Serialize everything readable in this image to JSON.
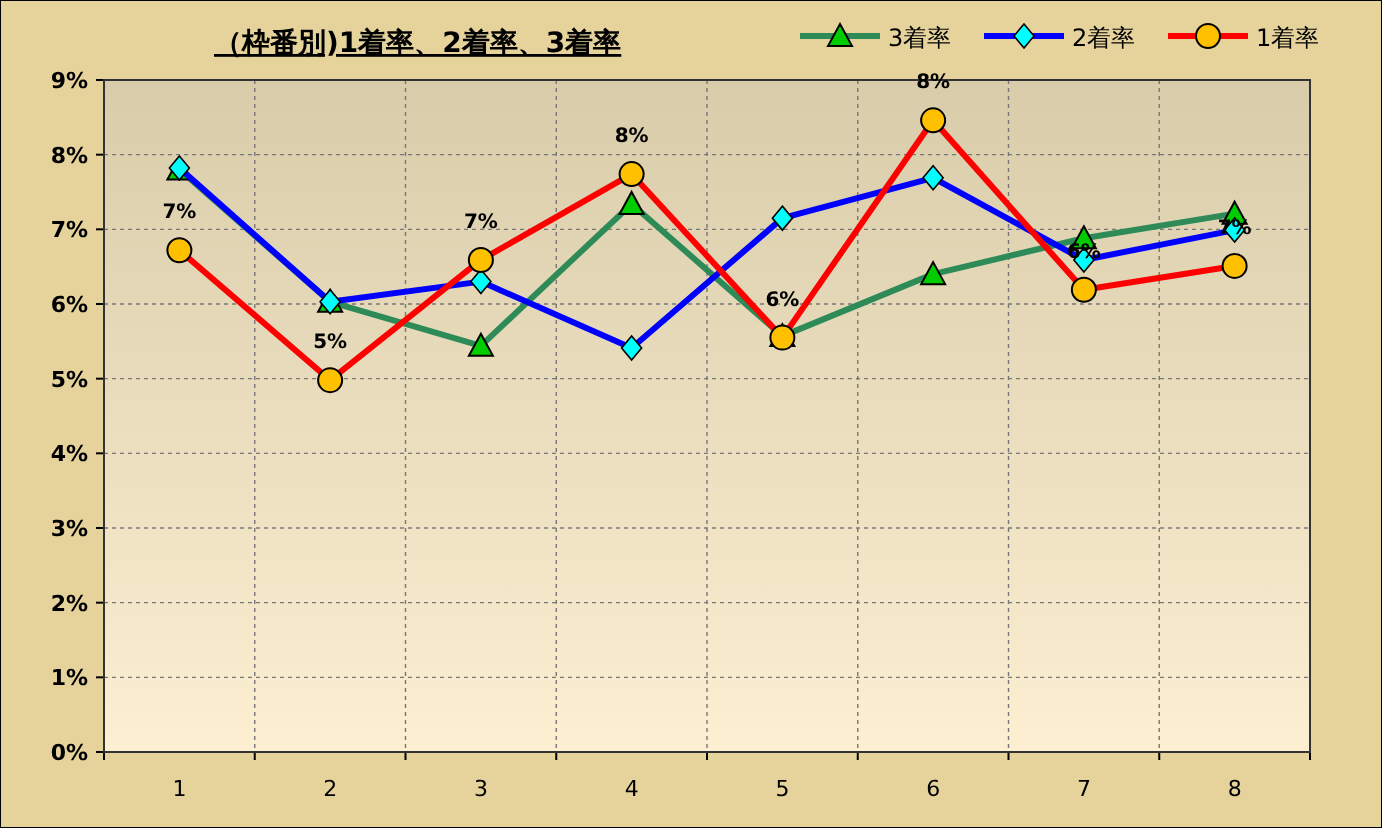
{
  "chart_data": {
    "type": "line",
    "title": "（枠番別)1着率、2着率、3着率",
    "categories": [
      "1",
      "2",
      "3",
      "4",
      "5",
      "6",
      "7",
      "8"
    ],
    "ylim": [
      0,
      9
    ],
    "yticks": [
      {
        "value": 0,
        "label": "0%"
      },
      {
        "value": 1,
        "label": "1%"
      },
      {
        "value": 2,
        "label": "2%"
      },
      {
        "value": 3,
        "label": "3%"
      },
      {
        "value": 4,
        "label": "4%"
      },
      {
        "value": 5,
        "label": "5%"
      },
      {
        "value": 6,
        "label": "6%"
      },
      {
        "value": 7,
        "label": "7%"
      },
      {
        "value": 8,
        "label": "8%"
      },
      {
        "value": 9,
        "label": "9%"
      }
    ],
    "grid": true,
    "legend": "top right",
    "line_style": "solid",
    "series": [
      {
        "name": "3着率",
        "color": "#2e8b57",
        "marker": "triangle",
        "values": [
          7.8,
          6.03,
          5.44,
          7.34,
          5.57,
          6.4,
          6.88,
          7.21
        ]
      },
      {
        "name": "2着率",
        "color": "#0000ff",
        "marker": "diamond",
        "values": [
          7.82,
          6.03,
          6.3,
          5.41,
          7.15,
          7.69,
          6.59,
          6.99
        ]
      },
      {
        "name": "1着率",
        "color": "#ff0000",
        "marker": "circle",
        "values": [
          6.72,
          4.98,
          6.59,
          7.74,
          5.55,
          8.46,
          6.19,
          6.51
        ],
        "value_labels": [
          "7%",
          "5%",
          "7%",
          "8%",
          "6%",
          "8%",
          "6%",
          "7%"
        ]
      }
    ]
  }
}
